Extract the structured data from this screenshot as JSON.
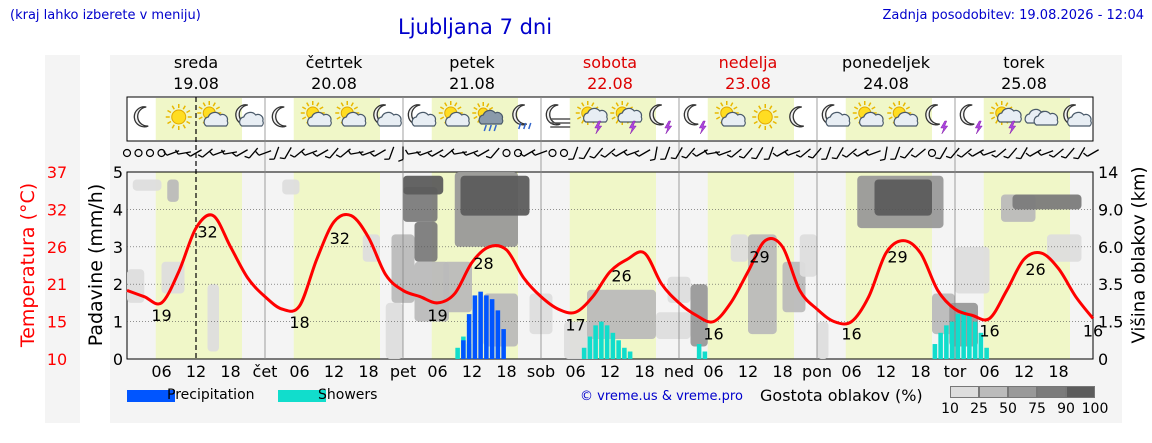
{
  "header": {
    "left_note": "(kraj lahko izberete v meniju)",
    "title": "Ljubljana 7 dni",
    "updated": "Zadnja posodobitev: 19.08.2026 - 12:04"
  },
  "credit": "© vreme.us & vreme.pro",
  "legend": {
    "precipitation": {
      "label": "Precipitation",
      "color": "#0055ff"
    },
    "showers": {
      "label": "Showers",
      "color": "#11ddcc"
    },
    "cloud_title": "Gostota oblakov (%)",
    "cloud_levels": [
      "10",
      "25",
      "50",
      "75",
      "90",
      "100"
    ],
    "cloud_colors": [
      "#dddddd",
      "#bbbbbb",
      "#999999",
      "#7b7b7b",
      "#5c5c5c"
    ]
  },
  "colors": {
    "temperature": "#ff0000",
    "day_band": "#f0f7c8",
    "weekend_day": "#dd0000"
  },
  "chart_data": {
    "type": "line",
    "days": [
      {
        "name": "sreda",
        "date": "19.08",
        "weekend": false
      },
      {
        "name": "četrtek",
        "date": "20.08",
        "weekend": false
      },
      {
        "name": "petek",
        "date": "21.08",
        "weekend": false
      },
      {
        "name": "sobota",
        "date": "22.08",
        "weekend": true
      },
      {
        "name": "nedelja",
        "date": "23.08",
        "weekend": true
      },
      {
        "name": "ponedeljek",
        "date": "24.08",
        "weekend": false
      },
      {
        "name": "torek",
        "date": "25.08",
        "weekend": false
      }
    ],
    "x_tick_labels": [
      "06",
      "12",
      "18",
      "čet",
      "06",
      "12",
      "18",
      "pet",
      "06",
      "12",
      "18",
      "sob",
      "06",
      "12",
      "18",
      "ned",
      "06",
      "12",
      "18",
      "pon",
      "06",
      "12",
      "18",
      "tor",
      "06",
      "12",
      "18"
    ],
    "current_time_hour": 12,
    "temperature": {
      "name": "Temperatura (°C)",
      "ylim": [
        10,
        40
      ],
      "ticks": [
        "10",
        "15",
        "21",
        "26",
        "32",
        "37"
      ],
      "hours": [
        0,
        3,
        6,
        9,
        12,
        15,
        18,
        21,
        24,
        27,
        30,
        33,
        36,
        39,
        42,
        45,
        48,
        51,
        54,
        57,
        60,
        63,
        66,
        69,
        72,
        75,
        78,
        81,
        84,
        87,
        90,
        93,
        96,
        99,
        102,
        105,
        108,
        111,
        114,
        117,
        120,
        123,
        126,
        129,
        132,
        135,
        138,
        141,
        144,
        147,
        150,
        153,
        156,
        159,
        162,
        165,
        168
      ],
      "values": [
        21.0,
        20.0,
        19.0,
        24.0,
        31.0,
        33.0,
        28.0,
        23.0,
        20.0,
        18.0,
        18.5,
        26.0,
        32.0,
        33.0,
        29.5,
        23.5,
        21.0,
        20.0,
        19.0,
        20.5,
        25.5,
        28.0,
        27.5,
        23.0,
        20.0,
        18.0,
        17.5,
        20.0,
        24.0,
        26.0,
        27.0,
        22.0,
        19.0,
        17.0,
        16.0,
        19.0,
        24.0,
        29.0,
        28.0,
        21.0,
        18.0,
        16.0,
        16.0,
        20.0,
        27.0,
        29.0,
        27.0,
        21.0,
        18.0,
        17.0,
        16.5,
        21.0,
        26.0,
        27.0,
        24.5,
        20.0,
        16.5
      ],
      "labels": [
        {
          "hour": 6,
          "text": "19"
        },
        {
          "hour": 14,
          "text": "32"
        },
        {
          "hour": 30,
          "text": "18"
        },
        {
          "hour": 37,
          "text": "32"
        },
        {
          "hour": 54,
          "text": "19"
        },
        {
          "hour": 62,
          "text": "28"
        },
        {
          "hour": 78,
          "text": "17"
        },
        {
          "hour": 86,
          "text": "26"
        },
        {
          "hour": 102,
          "text": "16"
        },
        {
          "hour": 110,
          "text": "29"
        },
        {
          "hour": 126,
          "text": "16"
        },
        {
          "hour": 134,
          "text": "29"
        },
        {
          "hour": 150,
          "text": "16"
        },
        {
          "hour": 158,
          "text": "26"
        },
        {
          "hour": 168,
          "text": "16"
        }
      ]
    },
    "precipitation": {
      "name": "Padavine (mm/h)",
      "ylim": [
        0,
        5
      ],
      "ticks": [
        "0",
        "1",
        "2",
        "3",
        "4",
        "5"
      ],
      "rain": {
        "hours": [
          58.5,
          59.5,
          60.5,
          61.5,
          62.5,
          63.5,
          64.5,
          65.5
        ],
        "values": [
          0.5,
          1.2,
          1.7,
          1.8,
          1.7,
          1.6,
          1.3,
          0.8
        ]
      },
      "showers": {
        "hours": [
          57.5,
          58.5,
          59.5,
          79.5,
          80.5,
          81.5,
          82.5,
          83.5,
          84.5,
          85.5,
          86.5,
          87.5,
          99.5,
          100.5,
          140.5,
          141.5,
          142.5,
          143.5,
          144.5,
          145.5,
          146.5,
          147.5,
          148.5,
          149.5
        ],
        "values": [
          0.3,
          0.6,
          0.4,
          0.3,
          0.6,
          0.9,
          1.0,
          0.9,
          0.7,
          0.5,
          0.3,
          0.2,
          0.4,
          0.2,
          0.4,
          0.7,
          0.9,
          1.0,
          1.2,
          1.3,
          1.2,
          1.0,
          0.7,
          0.3
        ]
      }
    },
    "cloud_height": {
      "name": "Višina oblakov (km)",
      "ticks": [
        "0",
        "1.5",
        "3.5",
        "6.0",
        "9.0",
        "14"
      ]
    },
    "cloud_density": {
      "legend_title": "Gostota oblakov (%)",
      "areas": [
        {
          "h0": 0,
          "h1": 3,
          "km0": 2.5,
          "km1": 4.5,
          "level": 1
        },
        {
          "h0": 1,
          "h1": 6,
          "km0": 11.5,
          "km1": 13,
          "level": 1
        },
        {
          "h0": 7,
          "h1": 9,
          "km0": 10,
          "km1": 13,
          "level": 2
        },
        {
          "h0": 6,
          "h1": 10,
          "km0": 3,
          "km1": 5,
          "level": 1
        },
        {
          "h0": 14,
          "h1": 16,
          "km0": 0.3,
          "km1": 3.5,
          "level": 1
        },
        {
          "h0": 27,
          "h1": 30,
          "km0": 11,
          "km1": 13,
          "level": 1
        },
        {
          "h0": 41,
          "h1": 44,
          "km0": 5,
          "km1": 7,
          "level": 1
        },
        {
          "h0": 45,
          "h1": 48,
          "km0": 0,
          "km1": 2.5,
          "level": 1
        },
        {
          "h0": 46,
          "h1": 50,
          "km0": 2.5,
          "km1": 7,
          "level": 2
        },
        {
          "h0": 48,
          "h1": 54,
          "km0": 8,
          "km1": 12,
          "level": 4
        },
        {
          "h0": 48,
          "h1": 55,
          "km0": 11,
          "km1": 13.5,
          "level": 5
        },
        {
          "h0": 50,
          "h1": 54,
          "km0": 5,
          "km1": 8,
          "level": 4
        },
        {
          "h0": 50,
          "h1": 56,
          "km0": 1.5,
          "km1": 5,
          "level": 2
        },
        {
          "h0": 55,
          "h1": 60,
          "km0": 2,
          "km1": 5,
          "level": 2
        },
        {
          "h0": 57,
          "h1": 68,
          "km0": 6,
          "km1": 14,
          "level": 3
        },
        {
          "h0": 58,
          "h1": 70,
          "km0": 8.5,
          "km1": 13.5,
          "level": 5
        },
        {
          "h0": 62,
          "h1": 68,
          "km0": 0.5,
          "km1": 3,
          "level": 2
        },
        {
          "h0": 70,
          "h1": 74,
          "km0": 1,
          "km1": 3,
          "level": 1
        },
        {
          "h0": 76,
          "h1": 82,
          "km0": 0,
          "km1": 1.5,
          "level": 1
        },
        {
          "h0": 80,
          "h1": 92,
          "km0": 0.8,
          "km1": 3.2,
          "level": 2
        },
        {
          "h0": 92,
          "h1": 98,
          "km0": 0.8,
          "km1": 2,
          "level": 1
        },
        {
          "h0": 94,
          "h1": 98,
          "km0": 2.5,
          "km1": 4,
          "level": 1
        },
        {
          "h0": 98,
          "h1": 101,
          "km0": 0.5,
          "km1": 3.5,
          "level": 3
        },
        {
          "h0": 105,
          "h1": 108,
          "km0": 5,
          "km1": 7,
          "level": 1
        },
        {
          "h0": 108,
          "h1": 113,
          "km0": 1,
          "km1": 7,
          "level": 2
        },
        {
          "h0": 114,
          "h1": 118,
          "km0": 2,
          "km1": 5,
          "level": 2
        },
        {
          "h0": 117,
          "h1": 120,
          "km0": 4,
          "km1": 7,
          "level": 1
        },
        {
          "h0": 120,
          "h1": 122,
          "km0": 0,
          "km1": 1.5,
          "level": 1
        },
        {
          "h0": 127,
          "h1": 142,
          "km0": 7.5,
          "km1": 13.5,
          "level": 3
        },
        {
          "h0": 130,
          "h1": 140,
          "km0": 8.5,
          "km1": 13,
          "level": 5
        },
        {
          "h0": 140,
          "h1": 144,
          "km0": 1,
          "km1": 3,
          "level": 2
        },
        {
          "h0": 143,
          "h1": 148,
          "km0": 0.5,
          "km1": 2.5,
          "level": 3
        },
        {
          "h0": 144,
          "h1": 150,
          "km0": 3,
          "km1": 6,
          "level": 1
        },
        {
          "h0": 152,
          "h1": 158,
          "km0": 8,
          "km1": 11,
          "level": 2
        },
        {
          "h0": 154,
          "h1": 166,
          "km0": 9,
          "km1": 11,
          "level": 4
        },
        {
          "h0": 160,
          "h1": 166,
          "km0": 5,
          "km1": 7,
          "level": 1
        }
      ]
    },
    "wind_hours": [
      0,
      2,
      4,
      6,
      8,
      10,
      12,
      14,
      16,
      18,
      20,
      22,
      24,
      26,
      28,
      30,
      32,
      34,
      36,
      38,
      40,
      42,
      44,
      46,
      48,
      50,
      52,
      54,
      56,
      58,
      60,
      62,
      64,
      66,
      68,
      70,
      72,
      74,
      76,
      78,
      80,
      82,
      84,
      86,
      88,
      90,
      92,
      94,
      96,
      98,
      100,
      102,
      104,
      106,
      108,
      110,
      112,
      114,
      116,
      118,
      120,
      122,
      124,
      126,
      128,
      130,
      132,
      134,
      136,
      138,
      140,
      142,
      144,
      146,
      148,
      150,
      152,
      154,
      156,
      158,
      160,
      162,
      164,
      166,
      168
    ],
    "wind_dir": [
      0,
      0,
      0,
      0,
      250,
      260,
      240,
      230,
      250,
      260,
      240,
      220,
      250,
      200,
      210,
      230,
      250,
      240,
      220,
      230,
      260,
      250,
      240,
      200,
      180,
      260,
      250,
      240,
      230,
      260,
      250,
      240,
      220,
      0,
      0,
      240,
      250,
      0,
      0,
      200,
      210,
      220,
      230,
      240,
      250,
      240,
      190,
      200,
      210,
      220,
      240,
      260,
      250,
      230,
      220,
      210,
      200,
      240,
      250,
      230,
      220,
      200,
      210,
      230,
      240,
      250,
      190,
      200,
      220,
      230,
      0,
      210,
      220,
      230,
      240,
      250,
      230,
      220,
      210,
      240,
      250,
      230,
      220,
      210,
      240
    ],
    "weather_icons": [
      {
        "hour": 3,
        "icon": "moon"
      },
      {
        "hour": 9,
        "icon": "sun"
      },
      {
        "hour": 15,
        "icon": "sun-cloud"
      },
      {
        "hour": 21,
        "icon": "moon-cloud"
      },
      {
        "hour": 27,
        "icon": "moon"
      },
      {
        "hour": 33,
        "icon": "sun-cloud"
      },
      {
        "hour": 39,
        "icon": "sun-cloud"
      },
      {
        "hour": 45,
        "icon": "moon-cloud"
      },
      {
        "hour": 51,
        "icon": "moon-cloud"
      },
      {
        "hour": 57,
        "icon": "sun-cloud"
      },
      {
        "hour": 63,
        "icon": "rain-cloud"
      },
      {
        "hour": 69,
        "icon": "moon-rain"
      },
      {
        "hour": 75,
        "icon": "fog"
      },
      {
        "hour": 81,
        "icon": "storm"
      },
      {
        "hour": 87,
        "icon": "storm"
      },
      {
        "hour": 93,
        "icon": "moon-storm"
      },
      {
        "hour": 99,
        "icon": "moon-storm"
      },
      {
        "hour": 105,
        "icon": "sun-cloud"
      },
      {
        "hour": 111,
        "icon": "sun"
      },
      {
        "hour": 117,
        "icon": "moon"
      },
      {
        "hour": 123,
        "icon": "moon-cloud"
      },
      {
        "hour": 129,
        "icon": "sun-cloud"
      },
      {
        "hour": 135,
        "icon": "sun-cloud"
      },
      {
        "hour": 141,
        "icon": "moon-storm"
      },
      {
        "hour": 147,
        "icon": "moon-storm"
      },
      {
        "hour": 153,
        "icon": "storm"
      },
      {
        "hour": 159,
        "icon": "cloud"
      },
      {
        "hour": 165,
        "icon": "moon-cloud"
      }
    ]
  }
}
